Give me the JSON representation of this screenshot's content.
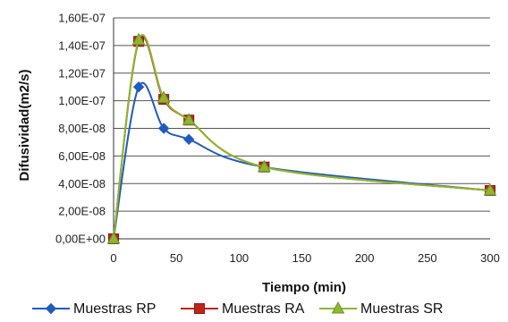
{
  "chart_data": {
    "type": "line",
    "xlabel": "Tiempo (min)",
    "ylabel": "Difusividad(m2/s)",
    "xlim": [
      0,
      300
    ],
    "ylim": [
      0,
      1.6e-07
    ],
    "xticks": [
      "0",
      "50",
      "100",
      "150",
      "200",
      "250",
      "300"
    ],
    "yticks": [
      "0,00E+00",
      "2,00E-08",
      "4,00E-08",
      "6,00E-08",
      "8,00E-08",
      "1,00E-07",
      "1,20E-07",
      "1,40E-07",
      "1,60E-07"
    ],
    "grid": "horizontal",
    "legend_position": "bottom",
    "series": [
      {
        "name": "Muestras RP",
        "color": "#1f5bbf",
        "marker": "diamond",
        "x": [
          0,
          20,
          40,
          60,
          120,
          300
        ],
        "y": [
          0,
          1.1e-07,
          8e-08,
          7.2e-08,
          5.2e-08,
          3.5e-08
        ]
      },
      {
        "name": "Muestras RA",
        "color": "#c0231a",
        "marker": "square",
        "x": [
          0,
          20,
          40,
          60,
          120,
          300
        ],
        "y": [
          0,
          1.43e-07,
          1.01e-07,
          8.6e-08,
          5.2e-08,
          3.5e-08
        ]
      },
      {
        "name": "Muestras SR",
        "color": "#8db72e",
        "marker": "triangle",
        "x": [
          0,
          20,
          40,
          60,
          120,
          300
        ],
        "y": [
          0,
          1.44e-07,
          1.02e-07,
          8.6e-08,
          5.2e-08,
          3.5e-08
        ]
      }
    ]
  }
}
